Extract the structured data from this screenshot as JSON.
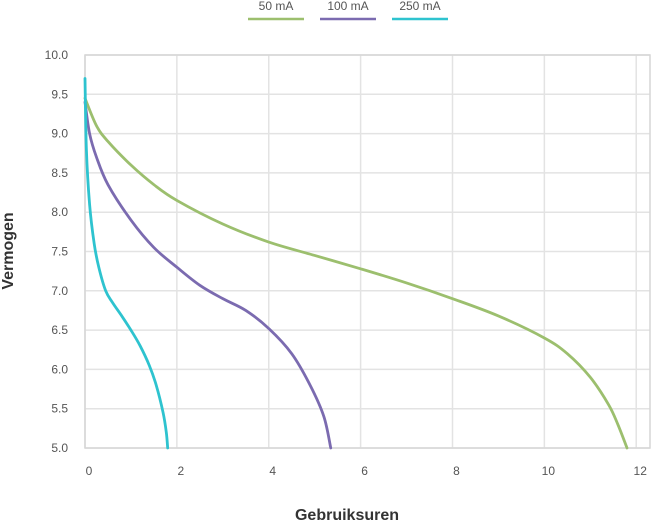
{
  "chart_data": {
    "type": "line",
    "title": "",
    "xlabel": "Gebruiksuren",
    "ylabel": "Vermogen",
    "xlim": [
      0,
      12.3
    ],
    "ylim": [
      5.0,
      10.0
    ],
    "x_ticks": [
      0,
      2,
      4,
      6,
      8,
      10,
      12
    ],
    "y_ticks": [
      5.0,
      5.5,
      6.0,
      6.5,
      7.0,
      7.5,
      8.0,
      8.5,
      9.0,
      9.5,
      10.0
    ],
    "grid": true,
    "legend_position": "top-center",
    "series": [
      {
        "name": "50 mA",
        "color": "#9cbf6e",
        "points": [
          [
            0,
            9.45
          ],
          [
            0.25,
            9.1
          ],
          [
            0.5,
            8.9
          ],
          [
            1,
            8.6
          ],
          [
            1.5,
            8.35
          ],
          [
            2,
            8.15
          ],
          [
            3,
            7.85
          ],
          [
            4,
            7.62
          ],
          [
            5,
            7.45
          ],
          [
            6,
            7.28
          ],
          [
            7,
            7.1
          ],
          [
            8,
            6.9
          ],
          [
            9,
            6.68
          ],
          [
            10,
            6.4
          ],
          [
            10.5,
            6.2
          ],
          [
            11,
            5.9
          ],
          [
            11.4,
            5.55
          ],
          [
            11.6,
            5.3
          ],
          [
            11.8,
            5.0
          ]
        ]
      },
      {
        "name": "100 mA",
        "color": "#7b6bb0",
        "points": [
          [
            0,
            9.4
          ],
          [
            0.1,
            9.0
          ],
          [
            0.25,
            8.7
          ],
          [
            0.5,
            8.35
          ],
          [
            1,
            7.9
          ],
          [
            1.5,
            7.55
          ],
          [
            2,
            7.3
          ],
          [
            2.5,
            7.07
          ],
          [
            3,
            6.9
          ],
          [
            3.5,
            6.75
          ],
          [
            4,
            6.52
          ],
          [
            4.5,
            6.2
          ],
          [
            4.9,
            5.8
          ],
          [
            5.2,
            5.4
          ],
          [
            5.35,
            5.0
          ]
        ]
      },
      {
        "name": "250 mA",
        "color": "#2ec3cf",
        "points": [
          [
            0,
            9.7
          ],
          [
            0.03,
            8.8
          ],
          [
            0.1,
            8.1
          ],
          [
            0.2,
            7.6
          ],
          [
            0.3,
            7.3
          ],
          [
            0.45,
            7.0
          ],
          [
            0.6,
            6.85
          ],
          [
            0.8,
            6.68
          ],
          [
            1.0,
            6.5
          ],
          [
            1.2,
            6.3
          ],
          [
            1.4,
            6.05
          ],
          [
            1.55,
            5.8
          ],
          [
            1.7,
            5.45
          ],
          [
            1.77,
            5.2
          ],
          [
            1.8,
            5.0
          ]
        ]
      }
    ]
  }
}
